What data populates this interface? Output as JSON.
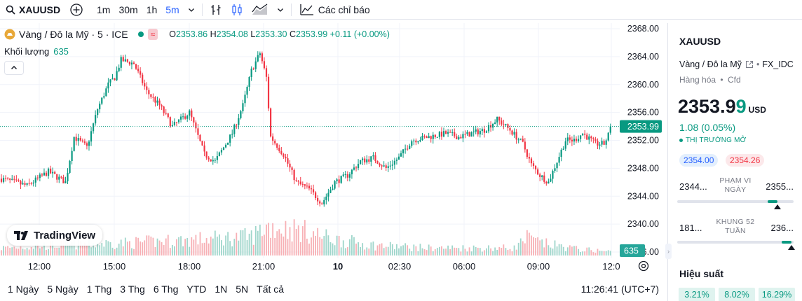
{
  "toolbar": {
    "symbol": "XAUUSD",
    "intervals": [
      "1m",
      "30m",
      "1h",
      "5m"
    ],
    "active_interval": "5m",
    "indicators_label": "Các chỉ báo"
  },
  "legend": {
    "title": "Vàng / Đô la Mỹ · 5 · ICE",
    "badge": "≈",
    "o_label": "O",
    "o": "2353.86",
    "h_label": "H",
    "h": "2354.08",
    "l_label": "L",
    "l": "2353.30",
    "c_label": "C",
    "c": "2353.99",
    "change": "+0.11 (+0.00%)",
    "volume_label": "Khối lượng",
    "volume": "635"
  },
  "brand": "TradingView",
  "chart_data": {
    "type": "candlestick",
    "y_ticks": [
      "2368.00",
      "2364.00",
      "2360.00",
      "2356.00",
      "2352.00",
      "2348.00",
      "2344.00",
      "2340.00",
      "2336.00"
    ],
    "ylim": [
      2336,
      2368
    ],
    "last_price_label": "2353.99",
    "last_price": 2353.99,
    "volume_label": "635",
    "x_ticks": [
      {
        "label": "12:00",
        "bold": false
      },
      {
        "label": "15:00",
        "bold": false
      },
      {
        "label": "18:00",
        "bold": false
      },
      {
        "label": "21:00",
        "bold": false
      },
      {
        "label": "10",
        "bold": true
      },
      {
        "label": "02:30",
        "bold": false
      },
      {
        "label": "06:00",
        "bold": false
      },
      {
        "label": "09:00",
        "bold": false
      },
      {
        "label": "12:0",
        "bold": false
      }
    ],
    "keypoints": [
      [
        0,
        2346.5
      ],
      [
        12,
        2345.5
      ],
      [
        22,
        2347.5
      ],
      [
        30,
        2346
      ],
      [
        34,
        2352.5
      ],
      [
        40,
        2351
      ],
      [
        45,
        2356.5
      ],
      [
        50,
        2360
      ],
      [
        53,
        2361
      ],
      [
        56,
        2363.5
      ],
      [
        62,
        2363
      ],
      [
        68,
        2359
      ],
      [
        74,
        2357
      ],
      [
        80,
        2354
      ],
      [
        88,
        2356
      ],
      [
        95,
        2350
      ],
      [
        100,
        2349
      ],
      [
        108,
        2353
      ],
      [
        113,
        2357
      ],
      [
        117,
        2362
      ],
      [
        121,
        2364.5
      ],
      [
        124,
        2361
      ],
      [
        126,
        2352.5
      ],
      [
        132,
        2350
      ],
      [
        138,
        2346
      ],
      [
        144,
        2345
      ],
      [
        150,
        2343
      ],
      [
        156,
        2346
      ],
      [
        162,
        2347
      ],
      [
        168,
        2349
      ],
      [
        174,
        2349.5
      ],
      [
        180,
        2348
      ],
      [
        186,
        2349.5
      ],
      [
        192,
        2352
      ],
      [
        200,
        2352.5
      ],
      [
        208,
        2353
      ],
      [
        214,
        2352.5
      ],
      [
        220,
        2353
      ],
      [
        226,
        2353.5
      ],
      [
        232,
        2355
      ],
      [
        238,
        2353.5
      ],
      [
        244,
        2351.5
      ],
      [
        248,
        2348.5
      ],
      [
        252,
        2347
      ],
      [
        256,
        2346
      ],
      [
        260,
        2349
      ],
      [
        264,
        2352
      ],
      [
        268,
        2352
      ],
      [
        272,
        2353
      ],
      [
        278,
        2351.5
      ],
      [
        282,
        2351.5
      ],
      [
        286,
        2353.99
      ]
    ],
    "volume_profile": [
      [
        0,
        6
      ],
      [
        34,
        9
      ],
      [
        60,
        10
      ],
      [
        95,
        13
      ],
      [
        117,
        15
      ],
      [
        124,
        23
      ],
      [
        140,
        20
      ],
      [
        155,
        13
      ],
      [
        175,
        8
      ],
      [
        200,
        6
      ],
      [
        240,
        6
      ],
      [
        246,
        14
      ],
      [
        252,
        10
      ],
      [
        270,
        5
      ],
      [
        286,
        3
      ]
    ],
    "candle_count": 286
  },
  "time_ranges": [
    "1 Ngày",
    "5 Ngày",
    "1 Thg",
    "3 Thg",
    "6 Thg",
    "YTD",
    "1N",
    "5N",
    "Tất cả"
  ],
  "clock": "11:26:41 (UTC+7)",
  "side": {
    "symbol": "XAUUSD",
    "desc": "Vàng / Đô la Mỹ",
    "source": "FX_IDC",
    "category": "Hàng hóa",
    "category2": "Cfd",
    "price_main": "2353.9",
    "price_last": "9",
    "currency": "USD",
    "change": "1.08 (0.05%)",
    "market_status": "THỊ TRƯỜNG MỞ",
    "bid": "2354.00",
    "ask": "2354.26",
    "day_low": "2344...",
    "day_title": "PHẠM VI NGÀY",
    "day_high": "2355...",
    "day_position": 0.86,
    "week52_low": "181...",
    "week52_title": "KHUNG 52 TUẦN",
    "week52_high": "236...",
    "week52_position": 0.98,
    "performance_title": "Hiệu suất",
    "performance": [
      "3.21%",
      "8.02%",
      "16.29%"
    ]
  }
}
